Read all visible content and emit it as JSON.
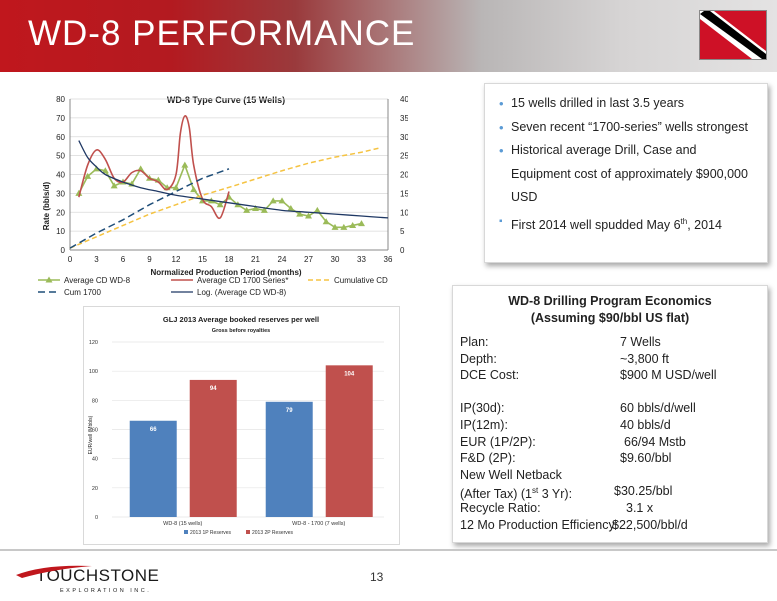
{
  "header": {
    "title": "WD-8 PERFORMANCE"
  },
  "bullets": [
    "15 wells drilled in last 3.5 years",
    "Seven recent “1700-series” wells strongest",
    "Historical average Drill, Case and Equipment cost of approximately $900,000 USD",
    "First 2014 well spudded May 6th, 2014"
  ],
  "economics": {
    "title_line1": "WD-8 Drilling Program Economics",
    "title_line2": "(Assuming $90/bbl US flat)",
    "rows": [
      {
        "label": "Plan:",
        "value": "7 Wells"
      },
      {
        "label": "Depth:",
        "value": "~3,800 ft"
      },
      {
        "label": "DCE Cost:",
        "value": "$900 M USD/well"
      },
      {
        "label": "",
        "value": ""
      },
      {
        "label": "IP(30d):",
        "value": "60 bbls/d/well"
      },
      {
        "label": "IP(12m):",
        "value": "40 bbls/d"
      },
      {
        "label": "EUR (1P/2P):",
        "value": "66/94 Mstb"
      },
      {
        "label": "F&D (2P):",
        "value": "$9.60/bbl"
      },
      {
        "label": "New Well Netback",
        "value": ""
      },
      {
        "label": "(After Tax) (1st 3 Yr):",
        "value": "$30.25/bbl"
      },
      {
        "label": "Recycle Ratio:",
        "value": "3.1 x"
      },
      {
        "label": "12 Mo Production Efficiency:",
        "value": "$22,500/bbl/d"
      }
    ]
  },
  "footer": {
    "page_number": "13",
    "logo_text": "TOUCHSTONE",
    "logo_sub": "EXPLORATION INC."
  },
  "colors": {
    "accent_red": "#c0171d",
    "avg_green": "#9bbb59",
    "series_red": "#c0504d",
    "cum_yellow": "#f5c342",
    "cum1700_blue": "#1f4e79",
    "log_navy": "#1f3864",
    "bar_blue": "#4f81bd",
    "bar_red": "#c0504d"
  },
  "chart_data": [
    {
      "type": "line",
      "title": "WD-8 Type Curve (15 Wells)",
      "xlabel": "Normalized Production Period (months)",
      "ylabel": "Rate (bbls/d)",
      "xlim": [
        0,
        36
      ],
      "ylim": [
        0,
        80
      ],
      "y2lim": [
        0,
        40
      ],
      "xticks": [
        0,
        3,
        6,
        9,
        12,
        15,
        18,
        21,
        24,
        27,
        30,
        33,
        36
      ],
      "yticks": [
        0,
        10,
        20,
        30,
        40,
        50,
        60,
        70,
        80
      ],
      "y2ticks": [
        0,
        5,
        10,
        15,
        20,
        25,
        30,
        35,
        40
      ],
      "legend": [
        "Average CD WD-8",
        "Average CD 1700 Series*",
        "Cumulative CD",
        "Cum 1700",
        "Log. (Average CD WD-8)"
      ],
      "series": [
        {
          "name": "Average CD WD-8",
          "axis": "left",
          "x": [
            1,
            2,
            3,
            4,
            5,
            6,
            7,
            8,
            9,
            10,
            11,
            12,
            13,
            14,
            15,
            16,
            17,
            18,
            19,
            20,
            21,
            22,
            23,
            24,
            25,
            26,
            27,
            28,
            29,
            30,
            31,
            32,
            33
          ],
          "y": [
            30,
            39,
            43,
            42,
            34,
            36,
            35,
            43,
            38,
            37,
            33,
            33,
            45,
            32,
            26,
            26,
            24,
            28,
            24,
            21,
            22,
            21,
            26,
            26,
            22,
            19,
            18,
            21,
            15,
            12,
            12,
            13,
            14
          ]
        },
        {
          "name": "Average CD 1700 Series*",
          "axis": "left",
          "x": [
            1,
            2,
            3,
            4,
            5,
            6,
            7,
            8,
            9,
            10,
            11,
            12,
            12.5,
            13,
            13.5,
            14,
            15,
            16,
            17,
            18
          ],
          "y": [
            28,
            45,
            53,
            48,
            38,
            36,
            41,
            42,
            38,
            36,
            32,
            40,
            62,
            71,
            65,
            45,
            27,
            23,
            17,
            31
          ]
        },
        {
          "name": "Cumulative CD",
          "axis": "right",
          "x": [
            0,
            3,
            6,
            9,
            12,
            15,
            18,
            21,
            24,
            27,
            30,
            33,
            35
          ],
          "y": [
            0.5,
            3.5,
            6.5,
            9.5,
            12,
            14.5,
            16.6,
            18.8,
            21,
            23,
            24.6,
            25.9,
            27
          ]
        },
        {
          "name": "Cum 1700",
          "axis": "right",
          "x": [
            0,
            3,
            6,
            9,
            12,
            15,
            18
          ],
          "y": [
            0.5,
            4.5,
            8,
            12,
            15.5,
            19,
            21.5
          ]
        },
        {
          "name": "Log. (Average CD WD-8)",
          "axis": "left",
          "x": [
            1,
            2,
            3,
            4,
            6,
            8,
            10,
            12,
            15,
            18,
            21,
            24,
            27,
            30,
            33,
            36
          ],
          "y": [
            58,
            49,
            44,
            40,
            36,
            33,
            31,
            29,
            27,
            25,
            23,
            21,
            20,
            19,
            18,
            17
          ]
        }
      ]
    },
    {
      "type": "bar",
      "title": "GLJ 2013 Average booked reserves per well",
      "subtitle": "Gross before royalties",
      "ylabel": "EUR/well (Mbbls)",
      "ylim": [
        0,
        120
      ],
      "yticks": [
        0,
        20,
        40,
        60,
        80,
        100,
        120
      ],
      "categories": [
        "WD-8 (15 wells)",
        "WD-8 - 1700 (7 wells)"
      ],
      "series": [
        {
          "name": "2013 1P Reserves",
          "values": [
            66,
            79
          ]
        },
        {
          "name": "2013 2P Reserves",
          "values": [
            94,
            104
          ]
        }
      ]
    }
  ]
}
